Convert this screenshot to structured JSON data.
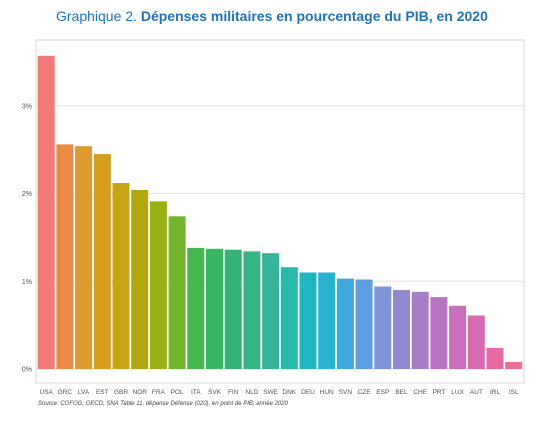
{
  "header": {
    "prefix": "Graphique 2.",
    "title": "Dépenses militaires en pourcentage du PIB, en 2020"
  },
  "source": "Source: COFOG, OECD, SNA Table 11, dépense Défense (020), en point de PIB, année 2020",
  "chart_data": {
    "type": "bar",
    "title": "Dépenses militaires en pourcentage du PIB, en 2020",
    "xlabel": "",
    "ylabel": "",
    "ylim": [
      0,
      3.75
    ],
    "yticks": [
      0,
      1,
      2,
      3
    ],
    "ytick_labels": [
      "0%",
      "1%",
      "2%",
      "3%"
    ],
    "grid": true,
    "legend": "none",
    "categories": [
      "USA",
      "GRC",
      "LVA",
      "EST",
      "GBR",
      "NOR",
      "FRA",
      "POL",
      "ITA",
      "SVK",
      "FIN",
      "NLD",
      "SWE",
      "DNK",
      "DEU",
      "HUN",
      "SVN",
      "CZE",
      "ESP",
      "BEL",
      "CHE",
      "PRT",
      "LUX",
      "AUT",
      "IRL",
      "ISL"
    ],
    "values": [
      3.57,
      2.56,
      2.54,
      2.45,
      2.12,
      2.04,
      1.91,
      1.74,
      1.38,
      1.37,
      1.36,
      1.34,
      1.32,
      1.16,
      1.1,
      1.1,
      1.03,
      1.02,
      0.94,
      0.9,
      0.88,
      0.82,
      0.72,
      0.61,
      0.24,
      0.08
    ],
    "colors": [
      "#f07a76",
      "#ea8c46",
      "#df9a2f",
      "#d39e1c",
      "#c7a516",
      "#b3a90f",
      "#9aae16",
      "#72b42e",
      "#45b650",
      "#38b664",
      "#33b474",
      "#35b486",
      "#36b39b",
      "#27b8ae",
      "#20b6bf",
      "#28b2cf",
      "#3ea8dc",
      "#5f9ee0",
      "#7f94d8",
      "#9189cb",
      "#a47fc7",
      "#b775c1",
      "#c96fbc",
      "#d66bb2",
      "#e56aa4",
      "#ec6f93"
    ]
  }
}
